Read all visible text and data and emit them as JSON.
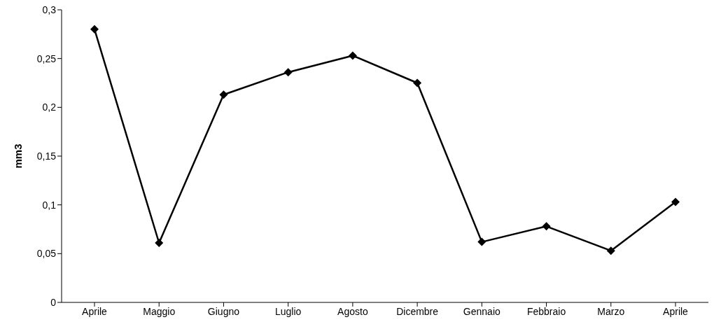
{
  "chart_data": {
    "type": "line",
    "ylabel": "mm3",
    "categories": [
      "Aprile",
      "Maggio",
      "Giugno",
      "Luglio",
      "Agosto",
      "Dicembre",
      "Gennaio",
      "Febbraio",
      "Marzo",
      "Aprile"
    ],
    "series": [
      {
        "color": "#000000",
        "values": [
          0.28,
          0.061,
          0.213,
          0.236,
          0.253,
          0.225,
          0.062,
          0.078,
          0.053,
          0.103
        ]
      }
    ],
    "ylim": [
      0,
      0.3
    ],
    "yticks": [
      0,
      {
        "value": 0.05,
        "label": "0,05"
      },
      {
        "value": 0.1,
        "label": "0,1"
      },
      {
        "value": 0.15,
        "label": "0,15"
      },
      {
        "value": 0.2,
        "label": "0,2"
      },
      {
        "value": 0.25,
        "label": "0,25"
      },
      {
        "value": 0.3,
        "label": "0,3"
      }
    ],
    "grid": false,
    "legend": false,
    "marker": "diamond",
    "line_style": "solid"
  }
}
